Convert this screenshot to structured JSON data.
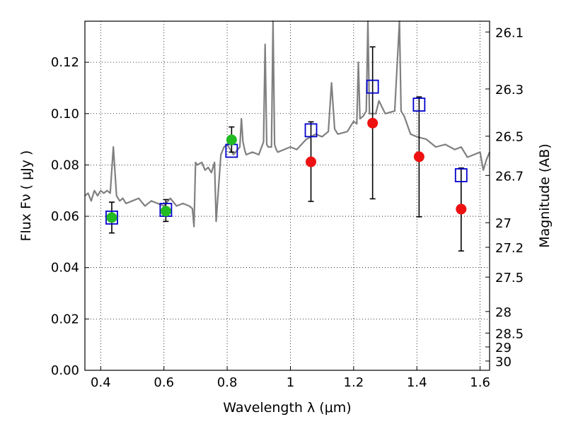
{
  "chart_data": {
    "type": "scatter",
    "title": "",
    "xlabel": "Wavelength  λ (μm)",
    "ylabel": "Flux  Fν  ( μJy )",
    "y2label": "Magnitude (AB)",
    "xlim": [
      0.35,
      1.63
    ],
    "ylim": [
      0.0,
      0.136
    ],
    "grid": true,
    "x_ticks": [
      {
        "value": 0.4,
        "label": "0.4"
      },
      {
        "value": 0.6,
        "label": "0.6"
      },
      {
        "value": 0.8,
        "label": "0.8"
      },
      {
        "value": 1.0,
        "label": "1"
      },
      {
        "value": 1.2,
        "label": "1.2"
      },
      {
        "value": 1.4,
        "label": "1.4"
      },
      {
        "value": 1.6,
        "label": "1.6"
      }
    ],
    "y_ticks": [
      {
        "value": 0.0,
        "label": "0.00"
      },
      {
        "value": 0.02,
        "label": "0.02"
      },
      {
        "value": 0.04,
        "label": "0.04"
      },
      {
        "value": 0.06,
        "label": "0.06"
      },
      {
        "value": 0.08,
        "label": "0.08"
      },
      {
        "value": 0.1,
        "label": "0.10"
      },
      {
        "value": 0.12,
        "label": "0.12"
      }
    ],
    "y2_ticks": [
      {
        "flux": 0.1318,
        "label": "26.1"
      },
      {
        "flux": 0.1096,
        "label": "26.3"
      },
      {
        "flux": 0.0912,
        "label": "26.5"
      },
      {
        "flux": 0.0759,
        "label": "26.7"
      },
      {
        "flux": 0.0575,
        "label": "27"
      },
      {
        "flux": 0.0479,
        "label": "27.2"
      },
      {
        "flux": 0.0363,
        "label": "27.5"
      },
      {
        "flux": 0.0229,
        "label": "28"
      },
      {
        "flux": 0.0145,
        "label": "28.5"
      },
      {
        "flux": 0.0091,
        "label": "29"
      },
      {
        "flux": 0.0036,
        "label": "30"
      }
    ],
    "colors": {
      "sed": "#808080",
      "green": "#22bb22",
      "red": "#ee1111",
      "square": "#0000cc",
      "errorbar": "#000000"
    },
    "series": [
      {
        "marker": "square",
        "points": [
          {
            "x": 0.435,
            "y": 0.0595
          },
          {
            "x": 0.606,
            "y": 0.0625
          },
          {
            "x": 0.814,
            "y": 0.0855
          },
          {
            "x": 1.065,
            "y": 0.0935
          },
          {
            "x": 1.26,
            "y": 0.1105
          },
          {
            "x": 1.407,
            "y": 0.1035
          },
          {
            "x": 1.54,
            "y": 0.076
          }
        ]
      },
      {
        "marker": "circle",
        "color": "green",
        "points": [
          {
            "x": 0.435,
            "y": 0.0595,
            "err": [
              0.0535,
              0.0655
            ]
          },
          {
            "x": 0.606,
            "y": 0.062,
            "err": [
              0.058,
              0.0665
            ]
          },
          {
            "x": 0.814,
            "y": 0.0898,
            "err": [
              0.085,
              0.0948
            ]
          }
        ]
      },
      {
        "marker": "circle",
        "color": "red",
        "points": [
          {
            "x": 1.065,
            "y": 0.0812,
            "err": [
              0.0658,
              0.0968
            ]
          },
          {
            "x": 1.26,
            "y": 0.0963,
            "err": [
              0.0668,
              0.126
            ]
          },
          {
            "x": 1.407,
            "y": 0.0832,
            "err": [
              0.0598,
              0.1065
            ]
          },
          {
            "x": 1.54,
            "y": 0.0628,
            "err": [
              0.0465,
              0.0788
            ]
          }
        ]
      },
      {
        "type": "line",
        "color": "sed",
        "x": [
          0.35,
          0.36,
          0.37,
          0.38,
          0.39,
          0.4,
          0.41,
          0.42,
          0.43,
          0.44,
          0.45,
          0.46,
          0.47,
          0.48,
          0.5,
          0.52,
          0.54,
          0.56,
          0.58,
          0.6,
          0.62,
          0.64,
          0.66,
          0.68,
          0.69,
          0.695,
          0.7,
          0.705,
          0.72,
          0.73,
          0.74,
          0.75,
          0.76,
          0.765,
          0.78,
          0.79,
          0.8,
          0.82,
          0.84,
          0.845,
          0.85,
          0.855,
          0.86,
          0.88,
          0.9,
          0.915,
          0.92,
          0.925,
          0.93,
          0.94,
          0.945,
          0.95,
          0.955,
          0.96,
          0.98,
          1.0,
          1.02,
          1.05,
          1.08,
          1.1,
          1.12,
          1.13,
          1.14,
          1.15,
          1.18,
          1.2,
          1.21,
          1.215,
          1.22,
          1.23,
          1.24,
          1.245,
          1.25,
          1.27,
          1.28,
          1.3,
          1.33,
          1.345,
          1.35,
          1.355,
          1.36,
          1.38,
          1.4,
          1.43,
          1.46,
          1.49,
          1.52,
          1.54,
          1.56,
          1.58,
          1.6,
          1.61,
          1.62,
          1.63
        ],
        "y": [
          0.068,
          0.069,
          0.066,
          0.07,
          0.068,
          0.07,
          0.069,
          0.07,
          0.069,
          0.087,
          0.068,
          0.066,
          0.067,
          0.065,
          0.066,
          0.067,
          0.064,
          0.066,
          0.065,
          0.064,
          0.067,
          0.064,
          0.065,
          0.064,
          0.063,
          0.056,
          0.081,
          0.08,
          0.081,
          0.078,
          0.079,
          0.077,
          0.081,
          0.058,
          0.084,
          0.087,
          0.088,
          0.084,
          0.087,
          0.098,
          0.089,
          0.086,
          0.084,
          0.085,
          0.084,
          0.089,
          0.127,
          0.088,
          0.087,
          0.087,
          0.136,
          0.088,
          0.086,
          0.085,
          0.086,
          0.087,
          0.086,
          0.09,
          0.092,
          0.091,
          0.093,
          0.112,
          0.094,
          0.092,
          0.093,
          0.097,
          0.096,
          0.12,
          0.098,
          0.099,
          0.101,
          0.136,
          0.1,
          0.1,
          0.105,
          0.1,
          0.101,
          0.136,
          0.101,
          0.1,
          0.099,
          0.092,
          0.091,
          0.09,
          0.087,
          0.088,
          0.086,
          0.087,
          0.083,
          0.084,
          0.085,
          0.078,
          0.082,
          0.085
        ]
      }
    ]
  }
}
